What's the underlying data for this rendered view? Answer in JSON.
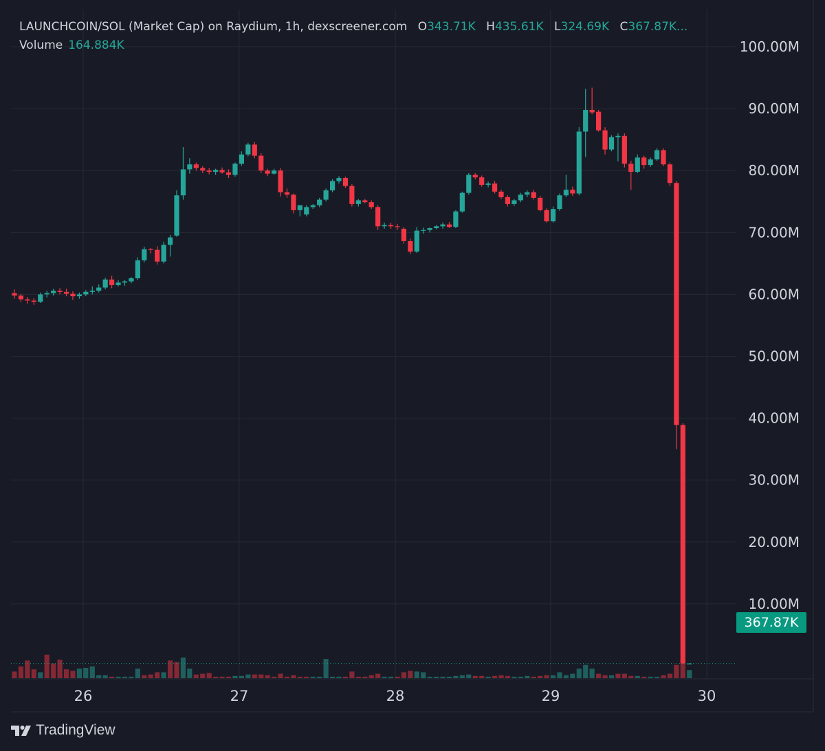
{
  "legend": {
    "symbol": "LAUNCHCOIN/SOL (Market Cap) on Raydium, 1h, dexscreener.com",
    "o_key": "O",
    "o_val": "343.71K",
    "h_key": "H",
    "h_val": "435.61K",
    "l_key": "L",
    "l_val": "324.69K",
    "c_key": "C",
    "c_val": "367.87K...",
    "volume_label": "Volume",
    "volume_val": "164.884K"
  },
  "last_price_label": "367.87K",
  "brand": {
    "name": "TradingView",
    "icon": "tradingview-logo-icon"
  },
  "colors": {
    "up": "#26a69a",
    "down": "#f23645",
    "background": "#181b25",
    "grid": "#262a35",
    "axis_text": "#d1d4dc",
    "last_price": "#089981"
  },
  "chart_data": {
    "type": "candlestick",
    "title": "LAUNCHCOIN/SOL (Market Cap) on Raydium, 1h, dexscreener.com",
    "interval": "1h",
    "y_unit": "market cap (USD)",
    "ylim": [
      -2000000,
      106000000
    ],
    "y_ticks": [
      10000000,
      20000000,
      30000000,
      40000000,
      50000000,
      60000000,
      70000000,
      80000000,
      90000000,
      100000000
    ],
    "y_tick_labels": [
      "10.00M",
      "20.00M",
      "30.00M",
      "40.00M",
      "50.00M",
      "60.00M",
      "70.00M",
      "80.00M",
      "90.00M",
      "100.00M"
    ],
    "x_ticks": [
      26,
      27,
      28,
      29,
      30
    ],
    "x_tick_labels": [
      "26",
      "27",
      "28",
      "29",
      "30"
    ],
    "x_range_days": [
      25.55,
      30.75
    ],
    "grid": true,
    "last_price": 367870,
    "candles_ohlc": [
      [
        60.2,
        60.8,
        59.3,
        59.8
      ],
      [
        59.8,
        60.1,
        58.8,
        59.2
      ],
      [
        59.2,
        59.6,
        58.5,
        59.0
      ],
      [
        59.0,
        59.4,
        58.3,
        58.8
      ],
      [
        58.8,
        60.3,
        58.6,
        60.0
      ],
      [
        60.0,
        60.6,
        59.5,
        60.2
      ],
      [
        60.2,
        60.9,
        59.8,
        60.6
      ],
      [
        60.6,
        61.0,
        60.0,
        60.4
      ],
      [
        60.4,
        60.9,
        59.7,
        60.1
      ],
      [
        60.1,
        60.5,
        59.1,
        59.7
      ],
      [
        59.7,
        60.3,
        59.3,
        60.0
      ],
      [
        60.0,
        60.7,
        59.7,
        60.4
      ],
      [
        60.4,
        61.3,
        60.0,
        60.6
      ],
      [
        60.6,
        61.6,
        60.3,
        61.1
      ],
      [
        61.1,
        62.7,
        60.8,
        62.4
      ],
      [
        62.4,
        63.0,
        61.0,
        61.5
      ],
      [
        61.5,
        62.3,
        61.3,
        61.9
      ],
      [
        61.9,
        62.3,
        61.4,
        62.1
      ],
      [
        62.1,
        62.8,
        61.8,
        62.6
      ],
      [
        62.6,
        66.0,
        62.3,
        65.5
      ],
      [
        65.5,
        67.7,
        65.2,
        67.3
      ],
      [
        67.3,
        67.5,
        66.6,
        67.2
      ],
      [
        67.2,
        67.8,
        64.8,
        65.3
      ],
      [
        65.3,
        68.5,
        65.0,
        68.0
      ],
      [
        68.0,
        69.6,
        66.1,
        69.2
      ],
      [
        69.5,
        76.8,
        69.3,
        76.0
      ],
      [
        76.0,
        83.8,
        75.3,
        80.2
      ],
      [
        80.2,
        82.0,
        79.5,
        81.0
      ],
      [
        81.0,
        81.3,
        80.0,
        80.4
      ],
      [
        80.4,
        80.7,
        79.6,
        80.0
      ],
      [
        80.0,
        80.4,
        79.4,
        79.8
      ],
      [
        79.8,
        80.3,
        79.3,
        80.1
      ],
      [
        80.1,
        80.5,
        79.5,
        79.7
      ],
      [
        79.7,
        80.2,
        78.8,
        79.3
      ],
      [
        79.3,
        81.3,
        79.0,
        81.1
      ],
      [
        81.1,
        83.1,
        80.8,
        82.6
      ],
      [
        82.6,
        84.5,
        82.3,
        84.2
      ],
      [
        84.2,
        84.6,
        82.0,
        82.4
      ],
      [
        82.4,
        82.8,
        79.6,
        80.0
      ],
      [
        80.0,
        80.3,
        79.1,
        79.5
      ],
      [
        79.5,
        80.3,
        79.3,
        80.0
      ],
      [
        80.0,
        80.4,
        75.8,
        76.5
      ],
      [
        76.5,
        77.1,
        75.6,
        76.1
      ],
      [
        76.1,
        76.3,
        73.1,
        73.6
      ],
      [
        73.6,
        74.2,
        72.6,
        74.4
      ],
      [
        72.9,
        74.4,
        72.6,
        74.1
      ],
      [
        74.1,
        74.6,
        73.8,
        74.4
      ],
      [
        74.4,
        75.6,
        74.1,
        75.3
      ],
      [
        75.3,
        77.1,
        75.0,
        76.8
      ],
      [
        76.8,
        78.6,
        76.5,
        78.3
      ],
      [
        78.3,
        79.1,
        77.9,
        78.8
      ],
      [
        78.8,
        79.0,
        77.2,
        77.5
      ],
      [
        77.5,
        77.8,
        74.2,
        74.6
      ],
      [
        74.6,
        75.4,
        74.2,
        75.2
      ],
      [
        75.2,
        75.4,
        74.7,
        74.9
      ],
      [
        74.9,
        75.2,
        73.8,
        74.1
      ],
      [
        74.1,
        74.4,
        70.4,
        71.0
      ],
      [
        71.0,
        71.6,
        70.6,
        71.2
      ],
      [
        71.2,
        71.6,
        70.6,
        71.0
      ],
      [
        71.0,
        71.4,
        70.4,
        70.9
      ],
      [
        70.6,
        70.9,
        68.2,
        68.6
      ],
      [
        68.6,
        69.0,
        66.5,
        66.9
      ],
      [
        66.9,
        70.9,
        66.7,
        70.3
      ],
      [
        70.3,
        70.8,
        69.8,
        70.4
      ],
      [
        70.4,
        70.8,
        70.0,
        70.7
      ],
      [
        70.7,
        71.2,
        70.5,
        71.0
      ],
      [
        71.0,
        71.6,
        70.6,
        71.3
      ],
      [
        71.3,
        71.7,
        70.7,
        70.9
      ],
      [
        70.9,
        73.6,
        70.7,
        73.4
      ],
      [
        73.4,
        76.6,
        73.2,
        76.4
      ],
      [
        76.4,
        79.6,
        76.1,
        79.3
      ],
      [
        79.3,
        79.6,
        78.6,
        78.9
      ],
      [
        78.9,
        79.2,
        77.4,
        77.7
      ],
      [
        77.7,
        78.2,
        77.3,
        77.9
      ],
      [
        77.9,
        78.3,
        76.3,
        76.6
      ],
      [
        76.6,
        76.9,
        75.4,
        75.7
      ],
      [
        75.7,
        76.0,
        74.2,
        74.6
      ],
      [
        74.6,
        75.4,
        74.3,
        75.2
      ],
      [
        75.2,
        76.4,
        74.9,
        76.1
      ],
      [
        76.1,
        76.8,
        75.7,
        76.5
      ],
      [
        76.5,
        76.9,
        75.3,
        75.6
      ],
      [
        75.6,
        75.9,
        73.4,
        73.6
      ],
      [
        73.6,
        73.9,
        71.6,
        71.8
      ],
      [
        71.8,
        74.2,
        71.6,
        73.8
      ],
      [
        73.8,
        76.3,
        73.5,
        76.0
      ],
      [
        76.0,
        79.3,
        75.7,
        76.9
      ],
      [
        76.9,
        77.4,
        75.9,
        76.3
      ],
      [
        76.3,
        87.0,
        76.0,
        86.3
      ],
      [
        86.3,
        93.2,
        82.2,
        89.8
      ],
      [
        89.8,
        93.4,
        89.1,
        89.4
      ],
      [
        89.5,
        89.8,
        86.3,
        86.5
      ],
      [
        86.5,
        87.0,
        82.6,
        83.4
      ],
      [
        83.4,
        85.7,
        83.1,
        85.4
      ],
      [
        85.4,
        86.0,
        81.5,
        85.6
      ],
      [
        85.6,
        86.0,
        80.5,
        81.1
      ],
      [
        81.1,
        81.6,
        76.9,
        79.8
      ],
      [
        79.8,
        82.6,
        79.6,
        82.1
      ],
      [
        82.1,
        82.4,
        80.3,
        80.9
      ],
      [
        80.9,
        82.1,
        80.6,
        81.8
      ],
      [
        81.8,
        83.6,
        81.6,
        83.3
      ],
      [
        83.3,
        83.6,
        80.7,
        81.0
      ],
      [
        81.0,
        81.3,
        77.5,
        78.0
      ],
      [
        78.0,
        78.3,
        35.0,
        38.9
      ],
      [
        38.9,
        39.2,
        0.32,
        0.37
      ],
      [
        0.34,
        0.44,
        0.32,
        0.37
      ]
    ],
    "volume": [
      [
        0.9,
        "down"
      ],
      [
        1.6,
        "down"
      ],
      [
        2.4,
        "down"
      ],
      [
        1.2,
        "down"
      ],
      [
        0.8,
        "up"
      ],
      [
        3.2,
        "down"
      ],
      [
        2.0,
        "down"
      ],
      [
        2.5,
        "down"
      ],
      [
        1.2,
        "down"
      ],
      [
        1.0,
        "down"
      ],
      [
        1.3,
        "up"
      ],
      [
        1.4,
        "up"
      ],
      [
        1.6,
        "up"
      ],
      [
        0.4,
        "up"
      ],
      [
        0.4,
        "up"
      ],
      [
        0.2,
        "down"
      ],
      [
        0.2,
        "up"
      ],
      [
        0.2,
        "up"
      ],
      [
        0.2,
        "up"
      ],
      [
        1.3,
        "up"
      ],
      [
        0.4,
        "down"
      ],
      [
        0.5,
        "down"
      ],
      [
        0.8,
        "down"
      ],
      [
        0.8,
        "up"
      ],
      [
        2.4,
        "down"
      ],
      [
        2.2,
        "down"
      ],
      [
        2.8,
        "up"
      ],
      [
        1.3,
        "up"
      ],
      [
        0.5,
        "down"
      ],
      [
        0.6,
        "down"
      ],
      [
        0.7,
        "down"
      ],
      [
        0.2,
        "down"
      ],
      [
        0.2,
        "down"
      ],
      [
        0.2,
        "down"
      ],
      [
        0.3,
        "up"
      ],
      [
        0.3,
        "up"
      ],
      [
        0.5,
        "up"
      ],
      [
        0.5,
        "down"
      ],
      [
        0.5,
        "down"
      ],
      [
        0.4,
        "down"
      ],
      [
        0.2,
        "down"
      ],
      [
        0.6,
        "down"
      ],
      [
        0.2,
        "down"
      ],
      [
        0.4,
        "down"
      ],
      [
        0.2,
        "down"
      ],
      [
        0.2,
        "down"
      ],
      [
        0.2,
        "up"
      ],
      [
        0.2,
        "up"
      ],
      [
        2.6,
        "up"
      ],
      [
        0.2,
        "up"
      ],
      [
        0.2,
        "up"
      ],
      [
        0.2,
        "down"
      ],
      [
        0.9,
        "down"
      ],
      [
        0.2,
        "down"
      ],
      [
        0.2,
        "down"
      ],
      [
        0.4,
        "down"
      ],
      [
        0.6,
        "down"
      ],
      [
        0.2,
        "up"
      ],
      [
        0.2,
        "up"
      ],
      [
        0.2,
        "down"
      ],
      [
        0.8,
        "down"
      ],
      [
        1.0,
        "down"
      ],
      [
        0.9,
        "up"
      ],
      [
        0.8,
        "up"
      ],
      [
        0.2,
        "up"
      ],
      [
        0.2,
        "up"
      ],
      [
        0.2,
        "up"
      ],
      [
        0.2,
        "up"
      ],
      [
        0.3,
        "up"
      ],
      [
        0.4,
        "up"
      ],
      [
        0.5,
        "up"
      ],
      [
        0.3,
        "down"
      ],
      [
        0.3,
        "down"
      ],
      [
        0.2,
        "up"
      ],
      [
        0.3,
        "down"
      ],
      [
        0.4,
        "down"
      ],
      [
        0.3,
        "down"
      ],
      [
        0.2,
        "up"
      ],
      [
        0.2,
        "up"
      ],
      [
        0.3,
        "up"
      ],
      [
        0.2,
        "down"
      ],
      [
        0.3,
        "down"
      ],
      [
        0.4,
        "down"
      ],
      [
        0.4,
        "up"
      ],
      [
        0.8,
        "up"
      ],
      [
        0.4,
        "up"
      ],
      [
        0.6,
        "up"
      ],
      [
        1.3,
        "up"
      ],
      [
        1.8,
        "up"
      ],
      [
        1.3,
        "up"
      ],
      [
        0.6,
        "down"
      ],
      [
        0.4,
        "down"
      ],
      [
        0.4,
        "up"
      ],
      [
        0.6,
        "down"
      ],
      [
        0.6,
        "down"
      ],
      [
        0.3,
        "down"
      ],
      [
        0.3,
        "up"
      ],
      [
        0.2,
        "down"
      ],
      [
        0.2,
        "up"
      ],
      [
        0.2,
        "up"
      ],
      [
        0.4,
        "down"
      ],
      [
        0.6,
        "down"
      ],
      [
        1.8,
        "down"
      ],
      [
        2.6,
        "down"
      ],
      [
        1.1,
        "up"
      ]
    ],
    "volume_ylim": [
      0,
      4.2
    ]
  }
}
